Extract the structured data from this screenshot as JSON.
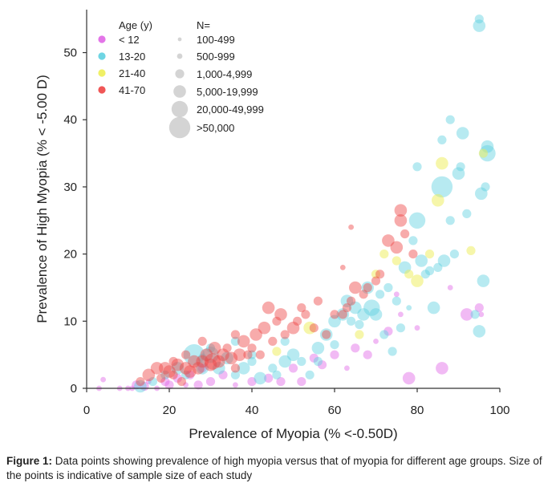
{
  "chart_data": {
    "type": "scatter",
    "xlabel": "Prevalence of Myopia (% <-0.50D)",
    "ylabel": "Prevalence of High Myopia (% < -5.00 D)",
    "xlim": [
      0,
      100
    ],
    "ylim": [
      0,
      56
    ],
    "x_ticks": [
      0,
      20,
      40,
      60,
      80,
      100
    ],
    "y_ticks": [
      0,
      10,
      20,
      30,
      40,
      50
    ],
    "legend": {
      "age_title": "Age (y)",
      "size_title": "N=",
      "age_groups": [
        {
          "label": "< 12",
          "color": "#e066e6"
        },
        {
          "label": "13-20",
          "color": "#5fd0e0"
        },
        {
          "label": "21-40",
          "color": "#eeee55"
        },
        {
          "label": "41-70",
          "color": "#ee4444"
        }
      ],
      "size_classes": [
        "100-499",
        "500-999",
        "1,000-4,999",
        "5,000-19,999",
        "20,000-49,999",
        ">50,000"
      ]
    },
    "series": [
      {
        "name": "< 12",
        "points": [
          [
            3,
            0,
            2
          ],
          [
            4,
            1.3,
            2
          ],
          [
            8,
            0,
            2
          ],
          [
            10,
            0,
            2
          ],
          [
            11,
            0,
            2
          ],
          [
            12,
            0.5,
            3
          ],
          [
            14,
            0.3,
            3
          ],
          [
            15,
            1,
            2
          ],
          [
            17,
            0,
            2
          ],
          [
            19,
            1,
            3
          ],
          [
            20,
            0.5,
            3
          ],
          [
            22,
            1.5,
            3
          ],
          [
            24,
            0.5,
            2
          ],
          [
            25,
            2,
            3
          ],
          [
            27,
            0.5,
            3
          ],
          [
            28,
            3,
            3
          ],
          [
            30,
            1,
            3
          ],
          [
            33,
            2,
            3
          ],
          [
            36,
            0.5,
            2
          ],
          [
            40,
            1,
            3
          ],
          [
            44,
            1.5,
            3
          ],
          [
            47,
            1,
            3
          ],
          [
            50,
            3,
            3
          ],
          [
            52,
            1,
            3
          ],
          [
            55,
            4.5,
            3
          ],
          [
            57,
            3.5,
            3
          ],
          [
            60,
            5,
            3
          ],
          [
            63,
            3,
            2
          ],
          [
            65,
            6,
            3
          ],
          [
            68,
            5,
            3
          ],
          [
            70,
            7,
            2
          ],
          [
            73,
            8.5,
            3
          ],
          [
            76,
            11,
            2
          ],
          [
            78,
            1.5,
            4
          ],
          [
            80,
            9,
            2
          ],
          [
            86,
            3,
            4
          ],
          [
            92,
            11,
            4
          ],
          [
            95,
            12,
            3
          ],
          [
            95.5,
            11,
            2
          ],
          [
            75,
            14,
            2
          ],
          [
            88,
            15,
            2
          ]
        ]
      },
      {
        "name": "13-20",
        "points": [
          [
            13,
            0.3,
            4
          ],
          [
            16,
            1,
            3
          ],
          [
            19,
            2,
            3
          ],
          [
            22,
            3,
            4
          ],
          [
            24,
            2,
            3
          ],
          [
            26,
            5,
            6
          ],
          [
            28,
            3,
            4
          ],
          [
            30,
            5,
            5
          ],
          [
            32,
            3,
            4
          ],
          [
            34,
            4.5,
            4
          ],
          [
            36,
            2,
            3
          ],
          [
            38,
            3,
            4
          ],
          [
            40,
            4,
            3
          ],
          [
            42,
            1.5,
            4
          ],
          [
            46,
            2,
            3
          ],
          [
            48,
            4,
            4
          ],
          [
            50,
            5,
            4
          ],
          [
            52,
            4,
            3
          ],
          [
            54,
            2,
            3
          ],
          [
            56,
            6,
            4
          ],
          [
            58,
            8,
            4
          ],
          [
            60,
            10,
            4
          ],
          [
            62,
            11,
            4
          ],
          [
            63,
            13,
            4
          ],
          [
            65,
            12,
            4
          ],
          [
            66,
            9.5,
            3
          ],
          [
            67,
            11,
            4
          ],
          [
            68,
            15,
            4
          ],
          [
            69,
            12,
            5
          ],
          [
            70,
            11,
            4
          ],
          [
            71,
            14,
            3
          ],
          [
            72,
            8,
            3
          ],
          [
            73,
            15,
            3
          ],
          [
            74,
            5.5,
            3
          ],
          [
            75,
            13,
            3
          ],
          [
            76,
            9,
            3
          ],
          [
            77,
            18,
            4
          ],
          [
            78,
            12,
            2
          ],
          [
            79,
            22,
            3
          ],
          [
            80,
            25,
            5
          ],
          [
            81,
            19,
            4
          ],
          [
            82,
            17,
            3
          ],
          [
            83,
            17.5,
            3
          ],
          [
            84,
            12,
            4
          ],
          [
            85,
            18,
            3
          ],
          [
            86,
            30,
            6
          ],
          [
            86.5,
            19,
            4
          ],
          [
            88,
            25,
            3
          ],
          [
            89,
            20,
            3
          ],
          [
            90,
            32,
            4
          ],
          [
            90.5,
            33,
            3
          ],
          [
            91,
            38,
            4
          ],
          [
            92,
            26,
            3
          ],
          [
            94,
            11,
            3
          ],
          [
            95,
            8.5,
            4
          ],
          [
            95.5,
            29,
            4
          ],
          [
            96,
            16,
            4
          ],
          [
            96.5,
            30,
            3
          ],
          [
            97,
            36,
            4
          ],
          [
            97,
            35,
            5
          ],
          [
            95,
            54,
            4
          ],
          [
            95,
            55,
            3
          ],
          [
            86,
            37,
            3
          ],
          [
            88,
            40,
            3
          ],
          [
            80,
            33,
            3
          ],
          [
            64,
            10,
            3
          ],
          [
            60,
            6.5,
            3
          ],
          [
            56,
            4,
            3
          ],
          [
            48,
            7,
            3
          ],
          [
            45,
            3,
            3
          ],
          [
            40,
            5,
            3
          ],
          [
            36,
            7,
            3
          ],
          [
            30,
            6,
            3
          ],
          [
            28,
            4.5,
            3
          ]
        ]
      },
      {
        "name": "21-40",
        "points": [
          [
            46,
            5.5,
            3
          ],
          [
            54,
            9,
            4
          ],
          [
            70,
            17,
            3
          ],
          [
            75,
            19,
            3
          ],
          [
            78,
            17,
            3
          ],
          [
            80,
            16,
            4
          ],
          [
            83,
            20,
            3
          ],
          [
            85,
            28,
            4
          ],
          [
            86,
            33.5,
            4
          ],
          [
            93,
            20.5,
            3
          ],
          [
            96,
            35,
            3
          ],
          [
            66,
            8,
            3
          ],
          [
            72,
            20,
            3
          ]
        ]
      },
      {
        "name": "41-70",
        "points": [
          [
            13,
            1,
            3
          ],
          [
            15,
            2,
            4
          ],
          [
            17,
            3,
            4
          ],
          [
            18,
            1.5,
            3
          ],
          [
            19,
            3,
            4
          ],
          [
            20,
            2.5,
            4
          ],
          [
            21,
            2,
            3
          ],
          [
            22,
            3.5,
            4
          ],
          [
            23,
            1,
            3
          ],
          [
            24,
            3,
            4
          ],
          [
            25,
            2.5,
            4
          ],
          [
            26,
            4,
            4
          ],
          [
            27,
            3,
            4
          ],
          [
            28,
            4,
            4
          ],
          [
            29,
            5,
            4
          ],
          [
            30,
            3.5,
            4
          ],
          [
            30.5,
            4,
            5
          ],
          [
            31,
            6,
            4
          ],
          [
            32,
            4,
            4
          ],
          [
            33,
            5,
            4
          ],
          [
            34,
            6,
            3
          ],
          [
            35,
            4.5,
            4
          ],
          [
            36,
            3,
            3
          ],
          [
            37,
            5,
            4
          ],
          [
            38,
            7,
            4
          ],
          [
            39,
            5,
            3
          ],
          [
            40,
            6,
            3
          ],
          [
            41,
            8,
            4
          ],
          [
            42,
            5,
            3
          ],
          [
            43,
            9,
            4
          ],
          [
            44,
            12,
            4
          ],
          [
            45,
            7,
            3
          ],
          [
            46,
            10,
            3
          ],
          [
            47,
            11,
            4
          ],
          [
            48,
            8,
            3
          ],
          [
            50,
            9,
            4
          ],
          [
            51,
            10,
            3
          ],
          [
            53,
            11,
            3
          ],
          [
            55,
            9,
            3
          ],
          [
            58,
            8,
            3
          ],
          [
            60,
            11,
            3
          ],
          [
            62,
            11,
            3
          ],
          [
            63,
            12,
            3
          ],
          [
            64,
            13,
            3
          ],
          [
            65,
            15,
            4
          ],
          [
            67,
            14,
            3
          ],
          [
            68,
            15,
            3
          ],
          [
            70,
            16,
            3
          ],
          [
            71,
            17,
            3
          ],
          [
            73,
            22,
            4
          ],
          [
            75,
            21,
            4
          ],
          [
            76,
            25,
            4
          ],
          [
            76,
            26.5,
            4
          ],
          [
            77,
            23,
            3
          ],
          [
            79,
            20,
            3
          ],
          [
            62,
            18,
            2
          ],
          [
            64,
            24,
            2
          ],
          [
            56,
            13,
            3
          ],
          [
            52,
            12,
            3
          ],
          [
            36,
            8,
            3
          ],
          [
            28,
            7,
            3
          ],
          [
            24,
            5,
            3
          ],
          [
            21,
            4,
            3
          ]
        ]
      }
    ]
  },
  "caption": {
    "label": "Figure 1:",
    "text": " Data points showing prevalence of high myopia versus that of myopia for different age groups. Size of the points is indicative of sample size of each study"
  }
}
